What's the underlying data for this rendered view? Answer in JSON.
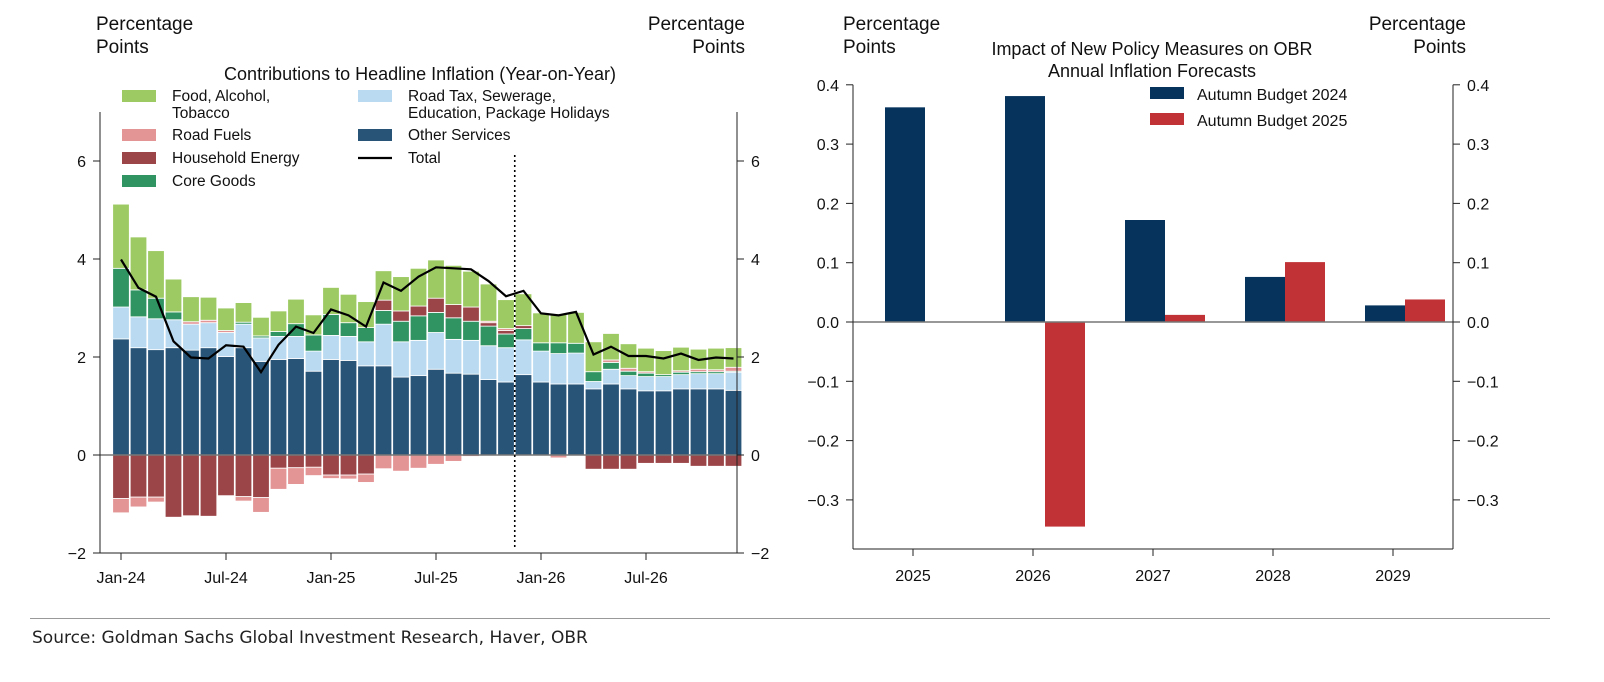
{
  "source": "Source: Goldman Sachs Global Investment Research, Haver, OBR",
  "colors": {
    "food": "#9dca63",
    "road_fuels": "#e39494",
    "household_energy": "#9b4548",
    "core_goods": "#2f9461",
    "road_tax": "#b9daf1",
    "other_services": "#285478",
    "total": "#000000",
    "ab2024": "#06335c",
    "ab2025": "#c03236"
  },
  "chart_data": [
    {
      "type": "bar",
      "stacked": true,
      "title": "Contributions to Headline Inflation (Year-on-Year)",
      "ylabel_left": "Percentage Points",
      "ylabel_right": "Percentage Points",
      "ylim": [
        -2,
        7
      ],
      "yticks": [
        -2,
        0,
        2,
        4,
        6
      ],
      "xticks": [
        {
          "index": 0,
          "label": "Jan-24"
        },
        {
          "index": 6,
          "label": "Jul-24"
        },
        {
          "index": 12,
          "label": "Jan-25"
        },
        {
          "index": 18,
          "label": "Jul-25"
        },
        {
          "index": 24,
          "label": "Jan-26"
        },
        {
          "index": 30,
          "label": "Jul-26"
        }
      ],
      "forecast_divider_after_index": 22.5,
      "legend": [
        {
          "key": "food",
          "label1": "Food, Alcohol,",
          "label2": "Tobacco"
        },
        {
          "key": "road_fuels",
          "label1": "Road Fuels",
          "label2": ""
        },
        {
          "key": "household_energy",
          "label1": "Household Energy",
          "label2": ""
        },
        {
          "key": "core_goods",
          "label1": "Core Goods",
          "label2": ""
        },
        {
          "key": "road_tax",
          "label1": "Road Tax, Sewerage,",
          "label2": "Education, Package Holidays"
        },
        {
          "key": "other_services",
          "label1": "Other Services",
          "label2": ""
        },
        {
          "key": "total",
          "label1": "Total",
          "label2": ""
        }
      ],
      "series": {
        "other_services": [
          2.37,
          2.19,
          2.15,
          2.19,
          2.14,
          2.19,
          2.01,
          2.19,
          1.91,
          1.95,
          1.97,
          1.71,
          1.95,
          1.93,
          1.82,
          1.82,
          1.59,
          1.62,
          1.75,
          1.67,
          1.65,
          1.54,
          1.49,
          1.64,
          1.49,
          1.45,
          1.45,
          1.35,
          1.45,
          1.35,
          1.31,
          1.31,
          1.35,
          1.35,
          1.35,
          1.32
        ],
        "road_tax": [
          0.65,
          0.63,
          0.63,
          0.57,
          0.53,
          0.51,
          0.49,
          0.48,
          0.48,
          0.47,
          0.45,
          0.41,
          0.49,
          0.49,
          0.49,
          0.85,
          0.72,
          0.72,
          0.75,
          0.69,
          0.69,
          0.69,
          0.7,
          0.71,
          0.63,
          0.62,
          0.63,
          0.15,
          0.3,
          0.27,
          0.29,
          0.29,
          0.29,
          0.31,
          0.31,
          0.37
        ],
        "core_goods": [
          0.79,
          0.55,
          0.42,
          0.16,
          0,
          0,
          0,
          0.04,
          0.04,
          0.1,
          0.26,
          0.33,
          0.43,
          0.28,
          0.29,
          0.28,
          0.42,
          0.5,
          0.41,
          0.44,
          0.39,
          0.4,
          0.28,
          0.23,
          0.17,
          0.22,
          0.2,
          0.2,
          0.14,
          0.09,
          0.07,
          0.04,
          0.05,
          0.04,
          0.04,
          0.02
        ],
        "household_energy": [
          -0.89,
          -0.86,
          -0.86,
          -1.27,
          -1.24,
          -1.25,
          -0.83,
          -0.85,
          -0.87,
          -0.27,
          -0.26,
          -0.25,
          -0.41,
          -0.41,
          -0.39,
          0.21,
          0.21,
          0.2,
          0.29,
          0.27,
          0.29,
          0.07,
          0.07,
          0.06,
          0,
          0,
          0,
          -0.29,
          -0.29,
          -0.29,
          -0.17,
          -0.17,
          -0.17,
          -0.23,
          -0.23,
          -0.23
        ],
        "road_fuels": [
          -0.29,
          -0.2,
          -0.1,
          0,
          0.05,
          0.05,
          0.04,
          -0.09,
          -0.3,
          -0.43,
          -0.34,
          -0.17,
          -0.07,
          -0.08,
          -0.17,
          -0.28,
          -0.33,
          -0.27,
          -0.19,
          -0.13,
          -0.03,
          0.03,
          0.04,
          0,
          0,
          -0.06,
          0,
          0,
          0.05,
          0.06,
          0.03,
          0,
          0.03,
          0.05,
          0.04,
          0.08
        ],
        "food": [
          1.31,
          1.08,
          0.97,
          0.67,
          0.51,
          0.47,
          0.46,
          0.4,
          0.38,
          0.42,
          0.5,
          0.41,
          0.55,
          0.58,
          0.53,
          0.6,
          0.7,
          0.77,
          0.78,
          0.8,
          0.73,
          0.76,
          0.59,
          0.65,
          0.61,
          0.59,
          0.63,
          0.61,
          0.54,
          0.5,
          0.48,
          0.49,
          0.48,
          0.41,
          0.44,
          0.4
        ],
        "total": [
          3.99,
          3.41,
          3.23,
          2.32,
          1.99,
          1.97,
          2.24,
          2.21,
          1.69,
          2.25,
          2.62,
          2.49,
          2.97,
          2.85,
          2.62,
          3.52,
          3.35,
          3.64,
          3.83,
          3.81,
          3.79,
          3.55,
          3.24,
          3.35,
          2.89,
          2.85,
          2.92,
          2.05,
          2.21,
          2.02,
          2.02,
          1.97,
          2.07,
          1.94,
          1.99,
          1.97
        ]
      }
    },
    {
      "type": "bar",
      "title1": "Impact of New Policy Measures on OBR",
      "title2": "Annual Inflation Forecasts",
      "ylabel_left": "Percentage Points",
      "ylabel_right": "Percentage Points",
      "ylim": [
        -0.385,
        0.4
      ],
      "yticks": [
        "-0.3",
        "-0.2",
        "-0.1",
        "0.0",
        "0.1",
        "0.2",
        "0.3",
        "0.4"
      ],
      "categories": [
        "2025",
        "2026",
        "2027",
        "2028",
        "2029"
      ],
      "series": [
        {
          "name": "Autumn Budget 2024",
          "key": "ab2024",
          "values": [
            0.362,
            0.381,
            0.172,
            0.076,
            0.028
          ]
        },
        {
          "name": "Autumn Budget 2025",
          "key": "ab2025",
          "values": [
            0,
            -0.345,
            0.012,
            0.101,
            0.038
          ]
        }
      ],
      "legend_position": "top-right"
    }
  ]
}
